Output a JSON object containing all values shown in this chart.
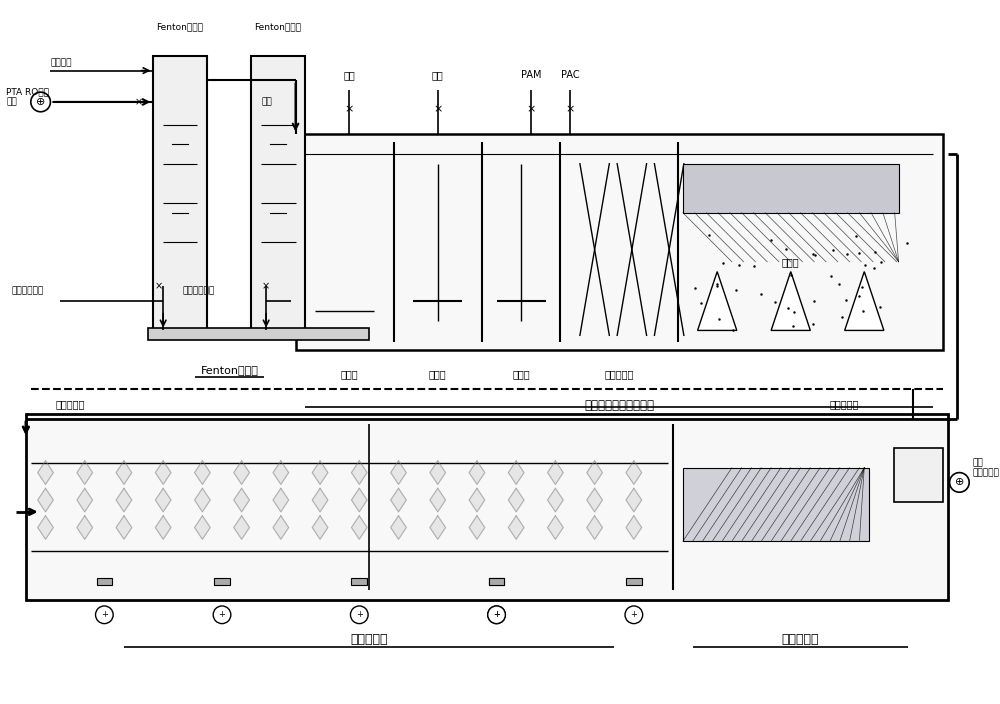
{
  "bg_color": "#ffffff",
  "line_color": "#000000",
  "line_width": 1.2,
  "labels": {
    "fenton_pump1": "Fenton循环泵",
    "fenton_pump2": "Fenton循环泵",
    "sulfuric_acid": "硫酸溶液",
    "pta_ro": "PTA RO浓水\n进水",
    "outlet_water": "出水",
    "ferrous_sulfate": "硫酸亚铁溶液",
    "hydrogen_peroxide": "过氧化氢溶液",
    "fenton_tower": "Fenton氧化塔",
    "alkali1": "熈液",
    "alkali2": "熈液",
    "pam": "PAM",
    "pac": "PAC",
    "aeration_tank": "散气池",
    "alkali_adj_tank": "调熈池",
    "fast_mix_tank": "快混池",
    "coag_tank": "累凝反应池",
    "sedimentation": "沉淠池",
    "neutral_reaction": "中和反应及混凝沉淠池",
    "return_sludge1": "回流污泥管",
    "return_sludge2": "回流污泥管",
    "hydrolysis_tank": "水解酸化池",
    "inclined_plate": "斜板沉淠池",
    "outlet_bio": "出水\n去生化处理"
  },
  "fig_width": 10.0,
  "fig_height": 7.04
}
